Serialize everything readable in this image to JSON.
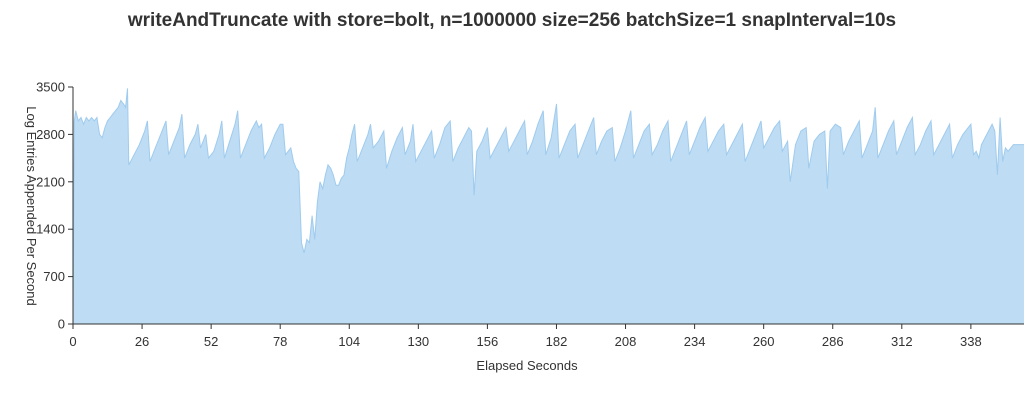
{
  "chart_data": {
    "type": "area",
    "title": "writeAndTruncate with store=bolt, n=1000000 size=256 batchSize=1 snapInterval=10s",
    "xlabel": "Elapsed Seconds",
    "ylabel": "Log Entries Appended Per Second",
    "xlim": [
      0,
      358
    ],
    "ylim": [
      0,
      3500
    ],
    "x_ticks": [
      0,
      26,
      52,
      78,
      104,
      130,
      156,
      182,
      208,
      234,
      260,
      286,
      312,
      338
    ],
    "y_ticks": [
      0,
      700,
      1400,
      2100,
      2800,
      3500
    ],
    "grid": false,
    "legend": "none",
    "colors": {
      "fill": "#bedcf3",
      "stroke": "#9fcbee",
      "axis": "#333333"
    },
    "series": [
      {
        "points": [
          [
            0,
            0
          ],
          [
            0.5,
            3000
          ],
          [
            1,
            3150
          ],
          [
            2,
            3000
          ],
          [
            3,
            3050
          ],
          [
            4,
            2950
          ],
          [
            5,
            3050
          ],
          [
            6,
            3000
          ],
          [
            7,
            3050
          ],
          [
            8,
            3000
          ],
          [
            9,
            3050
          ],
          [
            10,
            2800
          ],
          [
            11,
            2750
          ],
          [
            12,
            2900
          ],
          [
            13,
            3000
          ],
          [
            14,
            3050
          ],
          [
            15,
            3100
          ],
          [
            16,
            3150
          ],
          [
            17,
            3200
          ],
          [
            18,
            3300
          ],
          [
            19,
            3250
          ],
          [
            19.8,
            3200
          ],
          [
            20.5,
            3480
          ],
          [
            21,
            2350
          ],
          [
            23,
            2500
          ],
          [
            25,
            2650
          ],
          [
            27,
            2850
          ],
          [
            28,
            3000
          ],
          [
            29,
            2400
          ],
          [
            31,
            2600
          ],
          [
            33,
            2800
          ],
          [
            35,
            3000
          ],
          [
            36,
            2500
          ],
          [
            38,
            2700
          ],
          [
            40,
            2900
          ],
          [
            41,
            3100
          ],
          [
            42,
            2450
          ],
          [
            44,
            2650
          ],
          [
            46,
            2800
          ],
          [
            47,
            2950
          ],
          [
            48,
            2600
          ],
          [
            50,
            2800
          ],
          [
            51,
            2450
          ],
          [
            53,
            2550
          ],
          [
            55,
            2800
          ],
          [
            56,
            3000
          ],
          [
            57,
            2450
          ],
          [
            59,
            2700
          ],
          [
            61,
            2950
          ],
          [
            62,
            3150
          ],
          [
            63,
            2450
          ],
          [
            65,
            2650
          ],
          [
            67,
            2850
          ],
          [
            69,
            3000
          ],
          [
            70,
            2900
          ],
          [
            71,
            2950
          ],
          [
            72,
            2450
          ],
          [
            74,
            2600
          ],
          [
            76,
            2800
          ],
          [
            78,
            2950
          ],
          [
            79,
            2950
          ],
          [
            80,
            2500
          ],
          [
            82,
            2600
          ],
          [
            83,
            2400
          ],
          [
            84,
            2300
          ],
          [
            85,
            2250
          ],
          [
            86,
            1200
          ],
          [
            87,
            1050
          ],
          [
            88,
            1250
          ],
          [
            89,
            1200
          ],
          [
            90,
            1600
          ],
          [
            91,
            1250
          ],
          [
            92,
            1800
          ],
          [
            93,
            2100
          ],
          [
            94,
            2000
          ],
          [
            95,
            2200
          ],
          [
            96,
            2350
          ],
          [
            97,
            2300
          ],
          [
            98,
            2200
          ],
          [
            99,
            2050
          ],
          [
            100,
            2050
          ],
          [
            101,
            2150
          ],
          [
            102,
            2200
          ],
          [
            103,
            2450
          ],
          [
            104,
            2600
          ],
          [
            105,
            2800
          ],
          [
            106,
            2950
          ],
          [
            107,
            2400
          ],
          [
            109,
            2600
          ],
          [
            111,
            2800
          ],
          [
            112,
            2950
          ],
          [
            113,
            2600
          ],
          [
            115,
            2700
          ],
          [
            117,
            2850
          ],
          [
            118,
            2300
          ],
          [
            120,
            2550
          ],
          [
            122,
            2750
          ],
          [
            124,
            2900
          ],
          [
            125,
            2500
          ],
          [
            127,
            2700
          ],
          [
            128,
            2950
          ],
          [
            129,
            2400
          ],
          [
            131,
            2550
          ],
          [
            133,
            2700
          ],
          [
            135,
            2850
          ],
          [
            136,
            2450
          ],
          [
            138,
            2650
          ],
          [
            140,
            2900
          ],
          [
            142,
            3000
          ],
          [
            143,
            2400
          ],
          [
            145,
            2600
          ],
          [
            147,
            2750
          ],
          [
            149,
            2900
          ],
          [
            150,
            2850
          ],
          [
            151,
            1900
          ],
          [
            152,
            2550
          ],
          [
            154,
            2700
          ],
          [
            156,
            2900
          ],
          [
            157,
            2450
          ],
          [
            159,
            2600
          ],
          [
            161,
            2750
          ],
          [
            163,
            2900
          ],
          [
            164,
            2550
          ],
          [
            166,
            2700
          ],
          [
            168,
            2850
          ],
          [
            170,
            3000
          ],
          [
            171,
            2500
          ],
          [
            173,
            2700
          ],
          [
            175,
            2950
          ],
          [
            177,
            3150
          ],
          [
            178,
            2500
          ],
          [
            180,
            2750
          ],
          [
            181,
            3000
          ],
          [
            182,
            3250
          ],
          [
            183,
            2450
          ],
          [
            185,
            2650
          ],
          [
            187,
            2850
          ],
          [
            189,
            2950
          ],
          [
            190,
            2450
          ],
          [
            192,
            2650
          ],
          [
            194,
            2850
          ],
          [
            196,
            3050
          ],
          [
            197,
            2500
          ],
          [
            199,
            2700
          ],
          [
            201,
            2850
          ],
          [
            203,
            2900
          ],
          [
            204,
            2400
          ],
          [
            206,
            2600
          ],
          [
            208,
            2850
          ],
          [
            210,
            3150
          ],
          [
            211,
            2450
          ],
          [
            213,
            2650
          ],
          [
            215,
            2850
          ],
          [
            217,
            2950
          ],
          [
            218,
            2500
          ],
          [
            220,
            2650
          ],
          [
            222,
            2850
          ],
          [
            224,
            3000
          ],
          [
            225,
            2400
          ],
          [
            227,
            2600
          ],
          [
            229,
            2800
          ],
          [
            231,
            3000
          ],
          [
            232,
            2500
          ],
          [
            234,
            2700
          ],
          [
            236,
            2900
          ],
          [
            238,
            3050
          ],
          [
            239,
            2550
          ],
          [
            241,
            2700
          ],
          [
            243,
            2850
          ],
          [
            245,
            2950
          ],
          [
            246,
            2500
          ],
          [
            248,
            2650
          ],
          [
            250,
            2800
          ],
          [
            252,
            2950
          ],
          [
            253,
            2400
          ],
          [
            255,
            2600
          ],
          [
            257,
            2800
          ],
          [
            259,
            3000
          ],
          [
            260,
            2600
          ],
          [
            262,
            2750
          ],
          [
            264,
            2900
          ],
          [
            266,
            3000
          ],
          [
            267,
            2550
          ],
          [
            269,
            2700
          ],
          [
            270,
            2100
          ],
          [
            272,
            2650
          ],
          [
            274,
            2850
          ],
          [
            276,
            2900
          ],
          [
            277,
            2300
          ],
          [
            279,
            2700
          ],
          [
            281,
            2800
          ],
          [
            283,
            2850
          ],
          [
            284,
            2000
          ],
          [
            285,
            2850
          ],
          [
            287,
            2950
          ],
          [
            289,
            2900
          ],
          [
            290,
            2500
          ],
          [
            292,
            2700
          ],
          [
            294,
            2850
          ],
          [
            296,
            3000
          ],
          [
            297,
            2450
          ],
          [
            299,
            2650
          ],
          [
            301,
            2850
          ],
          [
            302,
            3200
          ],
          [
            303,
            2450
          ],
          [
            305,
            2650
          ],
          [
            307,
            2850
          ],
          [
            309,
            3000
          ],
          [
            310,
            2500
          ],
          [
            312,
            2700
          ],
          [
            314,
            2900
          ],
          [
            316,
            3050
          ],
          [
            317,
            2500
          ],
          [
            319,
            2650
          ],
          [
            321,
            2850
          ],
          [
            323,
            3000
          ],
          [
            324,
            2500
          ],
          [
            326,
            2650
          ],
          [
            328,
            2800
          ],
          [
            330,
            2950
          ],
          [
            331,
            2450
          ],
          [
            333,
            2650
          ],
          [
            335,
            2800
          ],
          [
            337,
            2900
          ],
          [
            338,
            2950
          ],
          [
            339,
            2500
          ],
          [
            340,
            2550
          ],
          [
            341,
            2450
          ],
          [
            342,
            2650
          ],
          [
            344,
            2800
          ],
          [
            346,
            2950
          ],
          [
            347,
            2850
          ],
          [
            348,
            2200
          ],
          [
            349,
            3050
          ],
          [
            350,
            2400
          ],
          [
            351,
            2600
          ],
          [
            352,
            2550
          ],
          [
            354,
            2650
          ],
          [
            356,
            2650
          ],
          [
            358,
            2650
          ]
        ]
      }
    ]
  }
}
